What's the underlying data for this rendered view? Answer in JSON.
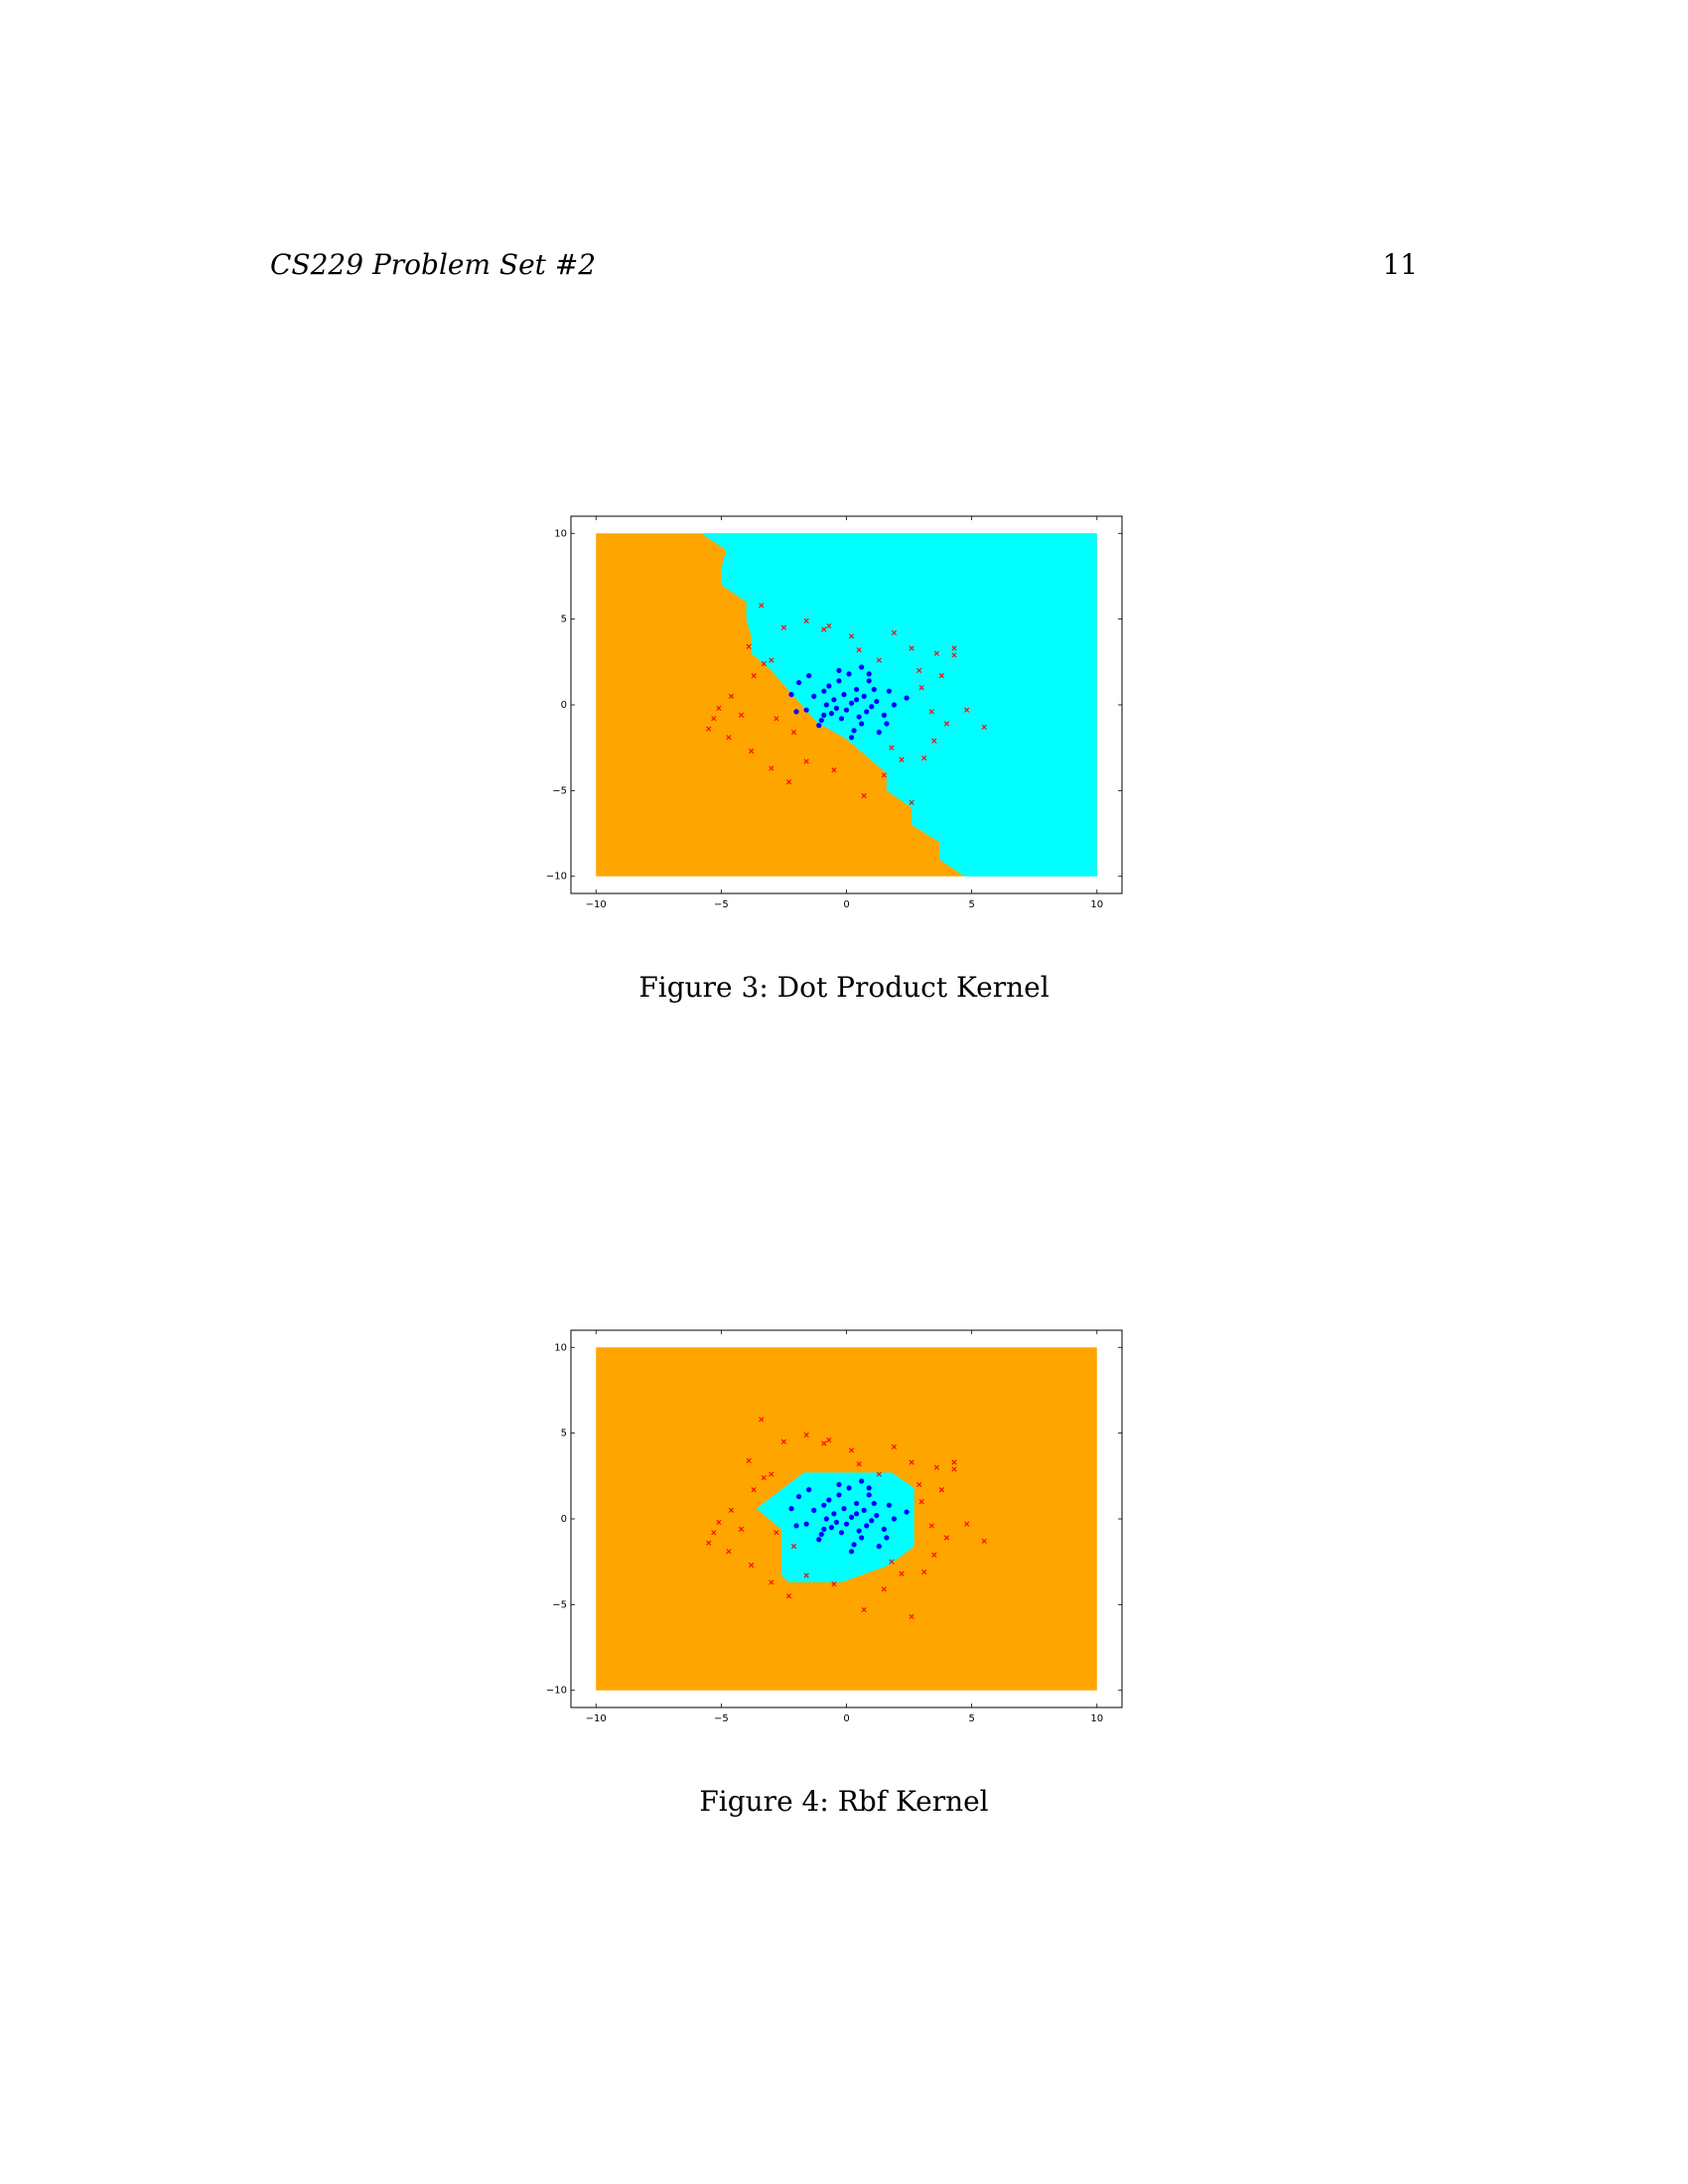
{
  "header": {
    "running_title": "CS229 Problem Set #2",
    "page_number": "11"
  },
  "figures": [
    {
      "caption": "Figure 3: Dot Product Kernel"
    },
    {
      "caption": "Figure 4: Rbf Kernel"
    }
  ],
  "colors": {
    "region_positive": "#00ffff",
    "region_negative": "#ffa500",
    "class_circle": "#0000ff",
    "class_x": "#ff0000"
  },
  "chart_data": [
    {
      "type": "scatter",
      "subtype": "decision-region",
      "title": "",
      "xlabel": "",
      "ylabel": "",
      "xlim": [
        -11,
        11
      ],
      "ylim": [
        -11,
        11
      ],
      "xticks": [
        -10,
        -5,
        0,
        5,
        10
      ],
      "yticks": [
        -10,
        -5,
        0,
        5,
        10
      ],
      "xtick_labels": [
        "−10",
        "−5",
        "0",
        "5",
        "10"
      ],
      "ytick_labels": [
        "−10",
        "−5",
        "0",
        "5",
        "10"
      ],
      "region_extent": [
        -10,
        10,
        -10,
        10
      ],
      "positive_region_polygon": [
        [
          -5.8,
          10
        ],
        [
          10,
          10
        ],
        [
          10,
          -10
        ],
        [
          4.7,
          -10
        ],
        [
          3.7,
          -9
        ],
        [
          3.7,
          -8
        ],
        [
          2.6,
          -7
        ],
        [
          2.6,
          -6
        ],
        [
          1.6,
          -5
        ],
        [
          1.6,
          -4
        ],
        [
          0.8,
          -3
        ],
        [
          0,
          -2
        ],
        [
          -1.2,
          -1
        ],
        [
          -1.8,
          0
        ],
        [
          -2.4,
          1
        ],
        [
          -3,
          2
        ],
        [
          -3.8,
          3
        ],
        [
          -3.8,
          4
        ],
        [
          -4,
          5
        ],
        [
          -4,
          6
        ],
        [
          -5,
          7
        ],
        [
          -5,
          8
        ],
        [
          -4.8,
          9
        ],
        [
          -5.8,
          10
        ]
      ],
      "series": [
        {
          "marker": "o",
          "points": [
            [
              0.2,
              0.1
            ],
            [
              -0.5,
              0.3
            ],
            [
              0.8,
              -0.4
            ],
            [
              -0.9,
              -0.6
            ],
            [
              0.4,
              0.9
            ],
            [
              1.2,
              0.2
            ],
            [
              -1.3,
              0.5
            ],
            [
              0.6,
              -1.1
            ],
            [
              -0.2,
              -0.8
            ],
            [
              0.9,
              1.4
            ],
            [
              -0.7,
              1.1
            ],
            [
              1.5,
              -0.6
            ],
            [
              -1.6,
              -0.3
            ],
            [
              0.1,
              1.8
            ],
            [
              0.3,
              -1.5
            ],
            [
              -1.1,
              -1.2
            ],
            [
              1.7,
              0.8
            ],
            [
              -1.9,
              1.3
            ],
            [
              0.7,
              0.5
            ],
            [
              -0.4,
              -0.2
            ],
            [
              1.0,
              -0.1
            ],
            [
              -0.1,
              0.6
            ],
            [
              0.5,
              -0.7
            ],
            [
              -0.8,
              0.0
            ],
            [
              2.4,
              0.4
            ],
            [
              -2.2,
              0.6
            ],
            [
              -0.3,
              2.0
            ],
            [
              0.9,
              1.8
            ],
            [
              1.3,
              -1.6
            ],
            [
              -1.5,
              1.7
            ],
            [
              0.0,
              -0.3
            ],
            [
              0.4,
              0.3
            ],
            [
              -0.6,
              -0.5
            ],
            [
              1.1,
              0.9
            ],
            [
              -1.0,
              -0.9
            ],
            [
              0.2,
              -1.9
            ],
            [
              -0.3,
              1.4
            ],
            [
              1.6,
              -1.1
            ],
            [
              -2.0,
              -0.4
            ],
            [
              0.6,
              2.2
            ],
            [
              -0.9,
              0.8
            ],
            [
              1.9,
              0.0
            ]
          ]
        },
        {
          "marker": "x",
          "points": [
            [
              -3.4,
              5.8
            ],
            [
              -2.5,
              4.5
            ],
            [
              -1.6,
              4.9
            ],
            [
              -0.9,
              4.4
            ],
            [
              0.2,
              4.0
            ],
            [
              1.9,
              4.2
            ],
            [
              2.6,
              3.3
            ],
            [
              3.6,
              3.0
            ],
            [
              4.3,
              3.3
            ],
            [
              -3.9,
              3.4
            ],
            [
              -3.0,
              2.6
            ],
            [
              -3.7,
              1.7
            ],
            [
              -4.6,
              0.5
            ],
            [
              -5.1,
              -0.2
            ],
            [
              -5.5,
              -1.4
            ],
            [
              -4.7,
              -1.9
            ],
            [
              -3.8,
              -2.7
            ],
            [
              -3.0,
              -3.7
            ],
            [
              -2.3,
              -4.5
            ],
            [
              -1.6,
              -3.3
            ],
            [
              -0.5,
              -3.8
            ],
            [
              0.7,
              -5.3
            ],
            [
              1.5,
              -4.1
            ],
            [
              2.2,
              -3.2
            ],
            [
              3.1,
              -3.1
            ],
            [
              3.5,
              -2.1
            ],
            [
              4.0,
              -1.1
            ],
            [
              4.8,
              -0.3
            ],
            [
              5.5,
              -1.3
            ],
            [
              3.0,
              1.0
            ],
            [
              3.8,
              1.7
            ],
            [
              4.3,
              2.9
            ],
            [
              -2.1,
              -1.6
            ],
            [
              2.6,
              -5.7
            ],
            [
              -5.3,
              -0.8
            ],
            [
              -3.3,
              2.4
            ],
            [
              1.3,
              2.6
            ],
            [
              -0.7,
              4.6
            ],
            [
              2.9,
              2.0
            ],
            [
              -2.8,
              -0.8
            ],
            [
              3.4,
              -0.4
            ],
            [
              1.8,
              -2.5
            ],
            [
              -4.2,
              -0.6
            ],
            [
              0.5,
              3.2
            ]
          ]
        }
      ]
    },
    {
      "type": "scatter",
      "subtype": "decision-region",
      "title": "",
      "xlabel": "",
      "ylabel": "",
      "xlim": [
        -11,
        11
      ],
      "ylim": [
        -11,
        11
      ],
      "xticks": [
        -10,
        -5,
        0,
        5,
        10
      ],
      "yticks": [
        -10,
        -5,
        0,
        5,
        10
      ],
      "xtick_labels": [
        "−10",
        "−5",
        "0",
        "5",
        "10"
      ],
      "ytick_labels": [
        "−10",
        "−5",
        "0",
        "5",
        "10"
      ],
      "region_extent": [
        -10,
        10,
        -10,
        10
      ],
      "positive_region_polygon": [
        [
          -1.7,
          2.7
        ],
        [
          1.8,
          2.7
        ],
        [
          2.7,
          1.8
        ],
        [
          2.7,
          -1.6
        ],
        [
          1.7,
          -2.7
        ],
        [
          -0.2,
          -3.7
        ],
        [
          -2.3,
          -3.7
        ],
        [
          -2.6,
          -3.3
        ],
        [
          -2.6,
          -0.6
        ],
        [
          -3.6,
          0.6
        ],
        [
          -1.7,
          2.7
        ]
      ],
      "series": [
        {
          "marker": "o",
          "points": [
            [
              0.2,
              0.1
            ],
            [
              -0.5,
              0.3
            ],
            [
              0.8,
              -0.4
            ],
            [
              -0.9,
              -0.6
            ],
            [
              0.4,
              0.9
            ],
            [
              1.2,
              0.2
            ],
            [
              -1.3,
              0.5
            ],
            [
              0.6,
              -1.1
            ],
            [
              -0.2,
              -0.8
            ],
            [
              0.9,
              1.4
            ],
            [
              -0.7,
              1.1
            ],
            [
              1.5,
              -0.6
            ],
            [
              -1.6,
              -0.3
            ],
            [
              0.1,
              1.8
            ],
            [
              0.3,
              -1.5
            ],
            [
              -1.1,
              -1.2
            ],
            [
              1.7,
              0.8
            ],
            [
              -1.9,
              1.3
            ],
            [
              0.7,
              0.5
            ],
            [
              -0.4,
              -0.2
            ],
            [
              1.0,
              -0.1
            ],
            [
              -0.1,
              0.6
            ],
            [
              0.5,
              -0.7
            ],
            [
              -0.8,
              0.0
            ],
            [
              2.4,
              0.4
            ],
            [
              -2.2,
              0.6
            ],
            [
              -0.3,
              2.0
            ],
            [
              0.9,
              1.8
            ],
            [
              1.3,
              -1.6
            ],
            [
              -1.5,
              1.7
            ],
            [
              0.0,
              -0.3
            ],
            [
              0.4,
              0.3
            ],
            [
              -0.6,
              -0.5
            ],
            [
              1.1,
              0.9
            ],
            [
              -1.0,
              -0.9
            ],
            [
              0.2,
              -1.9
            ],
            [
              -0.3,
              1.4
            ],
            [
              1.6,
              -1.1
            ],
            [
              -2.0,
              -0.4
            ],
            [
              0.6,
              2.2
            ],
            [
              -0.9,
              0.8
            ],
            [
              1.9,
              0.0
            ]
          ]
        },
        {
          "marker": "x",
          "points": [
            [
              -3.4,
              5.8
            ],
            [
              -2.5,
              4.5
            ],
            [
              -1.6,
              4.9
            ],
            [
              -0.9,
              4.4
            ],
            [
              0.2,
              4.0
            ],
            [
              1.9,
              4.2
            ],
            [
              2.6,
              3.3
            ],
            [
              3.6,
              3.0
            ],
            [
              4.3,
              3.3
            ],
            [
              -3.9,
              3.4
            ],
            [
              -3.0,
              2.6
            ],
            [
              -3.7,
              1.7
            ],
            [
              -4.6,
              0.5
            ],
            [
              -5.1,
              -0.2
            ],
            [
              -5.5,
              -1.4
            ],
            [
              -4.7,
              -1.9
            ],
            [
              -3.8,
              -2.7
            ],
            [
              -3.0,
              -3.7
            ],
            [
              -2.3,
              -4.5
            ],
            [
              -1.6,
              -3.3
            ],
            [
              -0.5,
              -3.8
            ],
            [
              0.7,
              -5.3
            ],
            [
              1.5,
              -4.1
            ],
            [
              2.2,
              -3.2
            ],
            [
              3.1,
              -3.1
            ],
            [
              3.5,
              -2.1
            ],
            [
              4.0,
              -1.1
            ],
            [
              4.8,
              -0.3
            ],
            [
              5.5,
              -1.3
            ],
            [
              3.0,
              1.0
            ],
            [
              3.8,
              1.7
            ],
            [
              4.3,
              2.9
            ],
            [
              -2.1,
              -1.6
            ],
            [
              2.6,
              -5.7
            ],
            [
              -5.3,
              -0.8
            ],
            [
              -3.3,
              2.4
            ],
            [
              1.3,
              2.6
            ],
            [
              -0.7,
              4.6
            ],
            [
              2.9,
              2.0
            ],
            [
              -2.8,
              -0.8
            ],
            [
              3.4,
              -0.4
            ],
            [
              1.8,
              -2.5
            ],
            [
              -4.2,
              -0.6
            ],
            [
              0.5,
              3.2
            ]
          ]
        }
      ]
    }
  ]
}
